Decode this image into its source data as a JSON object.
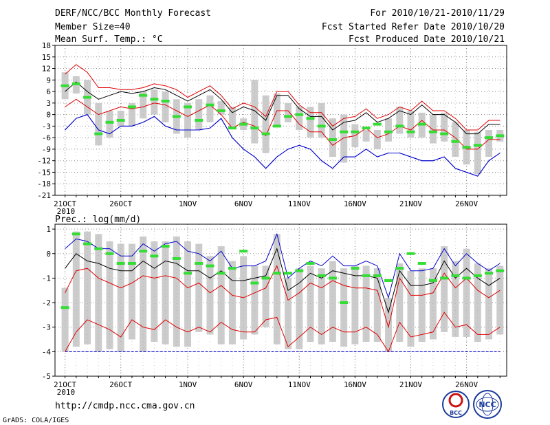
{
  "header": {
    "title": "DERF/NCC/BCC Monthly Forecast",
    "member": "Member Size=40",
    "variable": "Mean Surf. Temp.: °C",
    "period": "For 2010/10/21-2010/11/29",
    "started": "Fcst Started Refer Date 2010/10/20",
    "produced": "Fcst Produced Date 2010/10/21"
  },
  "footer": {
    "url": "http://cmdp.ncc.cma.gov.cn",
    "grads": "GrADS: COLA/IGES",
    "logo1": "BCC",
    "logo2": "NCC"
  },
  "colors": {
    "mean": "#000000",
    "percentile": "#e00000",
    "extreme": "#0000cc",
    "box": "#cccccc",
    "median": "#33dd33",
    "grid": "#888888",
    "threshold": "#0000cc"
  },
  "chart_data": [
    {
      "type": "box",
      "title": "Mean Surf. Temp.: °C",
      "x_tick_labels": [
        "21OCT",
        "26OCT",
        "1NOV",
        "6NOV",
        "11NOV",
        "16NOV",
        "21NOV",
        "26NOV"
      ],
      "x_tick_days": [
        0,
        5,
        11,
        16,
        21,
        26,
        31,
        36
      ],
      "year_label": "2010",
      "ylim": [
        -21,
        18
      ],
      "y_ticks": [
        18,
        15,
        12,
        9,
        6,
        3,
        0,
        -3,
        -6,
        -9,
        -12,
        -15,
        -18,
        -21
      ],
      "series": [
        {
          "name": "max",
          "values": [
            -4.0,
            -1.0,
            0.0,
            -4.0,
            -5.0,
            -3.0,
            -3.0,
            -2.0,
            -0.5,
            -3.0,
            -4.0,
            -4.0,
            -4.0,
            -3.5,
            -1.0,
            -6.0,
            -9.0,
            -11.0,
            -14.0,
            -11.0,
            -9.0,
            -8.0,
            -9.0,
            -12.0,
            -14.0,
            -11.0,
            -11.0,
            -9.0,
            -11.0,
            -10.0,
            -10.0,
            -11.0,
            -12.0,
            -12.0,
            -11.0,
            -14.0,
            -15.0,
            -16.0,
            -12.0,
            -10.0
          ]
        },
        {
          "name": "p90",
          "values": [
            10.5,
            13.0,
            11.0,
            7.0,
            7.0,
            6.5,
            6.5,
            7.0,
            8.0,
            7.5,
            6.5,
            4.5,
            6.0,
            7.5,
            5.0,
            1.5,
            3.0,
            2.0,
            -0.5,
            6.0,
            6.0,
            2.5,
            0.5,
            0.5,
            -3.0,
            -1.0,
            -0.5,
            1.5,
            -1.0,
            0.0,
            2.0,
            1.0,
            3.5,
            1.0,
            1.0,
            -1.0,
            -4.0,
            -4.0,
            -1.5,
            -1.5
          ]
        },
        {
          "name": "mean",
          "values": [
            6.0,
            8.5,
            6.0,
            4.0,
            5.0,
            6.0,
            5.5,
            6.0,
            7.0,
            6.5,
            5.0,
            3.5,
            5.0,
            6.5,
            4.0,
            0.5,
            2.0,
            1.0,
            -1.5,
            5.0,
            5.0,
            1.5,
            -0.5,
            -0.5,
            -4.0,
            -2.0,
            -1.5,
            0.5,
            -2.0,
            -1.0,
            1.0,
            0.0,
            2.5,
            0.0,
            0.0,
            -2.0,
            -5.0,
            -5.0,
            -2.5,
            -2.5
          ]
        },
        {
          "name": "p10",
          "values": [
            2.0,
            4.0,
            2.0,
            0.0,
            1.0,
            2.0,
            1.5,
            2.0,
            3.0,
            2.5,
            1.0,
            -0.5,
            1.0,
            2.5,
            0.0,
            -3.5,
            -2.0,
            -3.0,
            -5.5,
            1.0,
            1.0,
            -2.5,
            -4.5,
            -4.5,
            -8.0,
            -6.0,
            -5.5,
            -3.5,
            -6.0,
            -5.0,
            -3.0,
            -4.0,
            -1.5,
            -4.0,
            -4.0,
            -6.0,
            -9.0,
            -9.0,
            -6.5,
            -6.5
          ]
        },
        {
          "name": "min",
          "values": [
            -4.0,
            -1.0,
            0.0,
            -4.0,
            -5.0,
            -3.0,
            -3.0,
            -2.0,
            -0.5,
            -3.0,
            -4.0,
            -4.0,
            -4.0,
            -3.5,
            -1.0,
            -6.0,
            -9.0,
            -11.0,
            -14.0,
            -11.0,
            -9.0,
            -8.0,
            -9.0,
            -12.0,
            -14.0,
            -11.0,
            -11.0,
            -9.0,
            -11.0,
            -10.0,
            -10.0,
            -11.0,
            -12.0,
            -12.0,
            -11.0,
            -14.0,
            -15.0,
            -16.0,
            -12.0,
            -10.0
          ]
        }
      ],
      "boxes": {
        "top": [
          11.0,
          10.0,
          9.0,
          3.0,
          1.0,
          1.0,
          3.0,
          6.0,
          6.5,
          6.0,
          4.0,
          3.0,
          4.0,
          5.0,
          3.5,
          2.0,
          -1.0,
          9.0,
          5.0,
          5.5,
          3.0,
          2.0,
          2.0,
          3.0,
          -1.0,
          0.0,
          -2.5,
          -4.0,
          -4.0,
          -1.0,
          2.0,
          1.0,
          0.5,
          0.0,
          0.5,
          -2.0,
          -4.0,
          -4.5,
          -4.0,
          -4.0
        ],
        "bottom": [
          4.0,
          5.5,
          0.0,
          -8.0,
          -6.0,
          -3.0,
          -3.0,
          -1.0,
          0.0,
          -2.0,
          -5.0,
          -6.0,
          -4.0,
          -2.0,
          0.0,
          -3.5,
          -4.0,
          -7.5,
          -10.0,
          -3.0,
          -2.0,
          -4.0,
          -6.0,
          -6.0,
          -11.0,
          -12.5,
          -8.5,
          -7.0,
          -9.0,
          -7.0,
          -5.0,
          -6.0,
          -6.0,
          -7.5,
          -7.0,
          -11.0,
          -13.0,
          -15.5,
          -11.0,
          -7.0
        ]
      },
      "median": [
        7.5,
        8.0,
        4.5,
        -5.0,
        -2.0,
        -1.5,
        2.0,
        5.0,
        4.0,
        3.5,
        -0.5,
        2.0,
        -1.5,
        2.5,
        1.0,
        -3.5,
        -2.5,
        -3.5,
        -5.0,
        -3.0,
        -0.5,
        0.0,
        -1.0,
        -3.0,
        -6.5,
        -4.5,
        -4.5,
        -3.5,
        -2.5,
        -4.5,
        -3.0,
        -4.5,
        -2.5,
        -4.5,
        -5.0,
        -7.0,
        -8.5,
        -8.0,
        -6.0,
        -5.5
      ]
    },
    {
      "type": "box",
      "title": "Prec.: log(mm/d)",
      "x_tick_labels": [
        "21OCT",
        "26OCT",
        "1NOV",
        "6NOV",
        "11NOV",
        "16NOV",
        "21NOV",
        "26NOV"
      ],
      "x_tick_days": [
        0,
        5,
        11,
        16,
        21,
        26,
        31,
        36
      ],
      "year_label": "2010",
      "ylim": [
        -5,
        1.2
      ],
      "y_ticks": [
        1,
        0,
        -1,
        -2,
        -3,
        -4,
        -5
      ],
      "threshold": -4,
      "series": [
        {
          "name": "max",
          "values": [
            0.2,
            0.6,
            0.5,
            0.2,
            0.2,
            -0.1,
            -0.1,
            0.4,
            0.1,
            0.4,
            0.5,
            0.1,
            0.0,
            -0.3,
            0.1,
            -0.6,
            -0.5,
            -0.5,
            -0.3,
            0.8,
            -1.0,
            -0.6,
            -0.3,
            -0.5,
            -0.1,
            -0.5,
            -0.5,
            -0.3,
            -0.5,
            -1.8,
            0.0,
            -0.7,
            -0.7,
            -0.6,
            0.2,
            -0.5,
            0.0,
            -0.4,
            -0.7,
            -0.4
          ]
        },
        {
          "name": "mean",
          "values": [
            -0.6,
            0.0,
            -0.3,
            -0.4,
            -0.6,
            -0.7,
            -0.7,
            -0.3,
            -0.6,
            -0.3,
            -0.4,
            -0.7,
            -0.7,
            -1.0,
            -0.7,
            -1.1,
            -1.1,
            -1.0,
            -0.9,
            0.2,
            -1.5,
            -1.2,
            -0.8,
            -1.0,
            -0.7,
            -0.8,
            -0.9,
            -0.9,
            -1.0,
            -2.4,
            -0.7,
            -1.3,
            -1.3,
            -1.2,
            -0.3,
            -1.0,
            -0.6,
            -1.0,
            -1.3,
            -1.0
          ]
        },
        {
          "name": "p90",
          "values": [
            -1.6,
            -0.7,
            -0.6,
            -1.0,
            -1.2,
            -1.4,
            -1.2,
            -0.9,
            -1.0,
            -0.9,
            -1.0,
            -1.4,
            -1.2,
            -1.6,
            -1.3,
            -1.7,
            -1.8,
            -1.6,
            -1.4,
            -0.5,
            -1.9,
            -1.6,
            -1.2,
            -1.4,
            -1.1,
            -1.3,
            -1.4,
            -1.4,
            -1.5,
            -3.0,
            -1.0,
            -1.7,
            -1.7,
            -1.6,
            -0.8,
            -1.4,
            -1.0,
            -1.5,
            -1.8,
            -1.5
          ]
        },
        {
          "name": "p10",
          "values": [
            -4.0,
            -3.2,
            -2.7,
            -2.9,
            -3.1,
            -3.4,
            -2.7,
            -3.0,
            -3.1,
            -2.7,
            -3.0,
            -3.2,
            -3.0,
            -3.2,
            -2.8,
            -3.1,
            -3.2,
            -3.2,
            -2.7,
            -2.6,
            -3.8,
            -3.4,
            -3.0,
            -3.3,
            -3.0,
            -3.2,
            -3.2,
            -3.0,
            -3.3,
            -4.0,
            -2.8,
            -3.4,
            -3.3,
            -3.2,
            -2.4,
            -3.0,
            -2.9,
            -3.3,
            -3.3,
            -3.0
          ]
        },
        {
          "name": "min",
          "values": [
            -4.0,
            -4.0,
            -4.0,
            -4.0,
            -4.0,
            -4.0,
            -4.0,
            -4.0,
            -4.0,
            -4.0,
            -4.0,
            -4.0,
            -4.0,
            -4.0,
            -4.0,
            -4.0,
            -4.0,
            -4.0,
            -4.0,
            -4.0,
            -4.0,
            -4.0,
            -4.0,
            -4.0,
            -4.0,
            -4.0,
            -4.0,
            -4.0,
            -4.0,
            -4.0,
            -4.0,
            -4.0,
            -4.0,
            -4.0,
            -4.0,
            -4.0,
            -4.0,
            -4.0,
            -4.0,
            -4.0
          ]
        }
      ],
      "boxes": {
        "top": [
          -1.4,
          0.9,
          0.9,
          0.8,
          0.5,
          0.4,
          0.4,
          0.7,
          0.5,
          0.5,
          0.7,
          0.5,
          0.4,
          -0.1,
          0.3,
          -0.3,
          -0.1,
          -0.5,
          -0.5,
          0.8,
          -1.0,
          -0.6,
          -0.5,
          -0.6,
          -0.3,
          -0.6,
          -0.5,
          -0.5,
          -0.6,
          -1.8,
          -0.4,
          -0.7,
          -0.6,
          -0.6,
          0.3,
          -0.3,
          0.2,
          -0.4,
          -0.6,
          -0.5
        ],
        "bottom": [
          -4.0,
          -3.8,
          -3.7,
          -4.0,
          -3.9,
          -4.0,
          -3.5,
          -4.0,
          -3.6,
          -3.7,
          -3.8,
          -3.8,
          -3.2,
          -3.3,
          -3.7,
          -3.7,
          -3.5,
          -3.3,
          -3.0,
          -3.7,
          -3.9,
          -3.9,
          -3.6,
          -3.7,
          -3.6,
          -3.8,
          -3.7,
          -3.6,
          -3.6,
          -4.0,
          -3.6,
          -3.8,
          -3.6,
          -3.5,
          -3.2,
          -3.4,
          -3.4,
          -3.6,
          -3.5,
          -3.3
        ]
      },
      "median": [
        -2.2,
        0.8,
        0.4,
        0.2,
        0.0,
        -0.4,
        -0.4,
        0.1,
        -0.1,
        0.3,
        -0.2,
        -0.8,
        -0.4,
        -0.5,
        -0.8,
        -0.6,
        0.1,
        -1.2,
        -1.0,
        -0.8,
        -0.8,
        -0.7,
        -0.4,
        -0.9,
        -1.0,
        -2.0,
        -0.6,
        -0.9,
        -0.9,
        -1.1,
        -0.6,
        0.0,
        -0.4,
        -1.1,
        -1.0,
        -0.9,
        -1.0,
        -0.9,
        -0.8,
        -0.7
      ]
    }
  ]
}
